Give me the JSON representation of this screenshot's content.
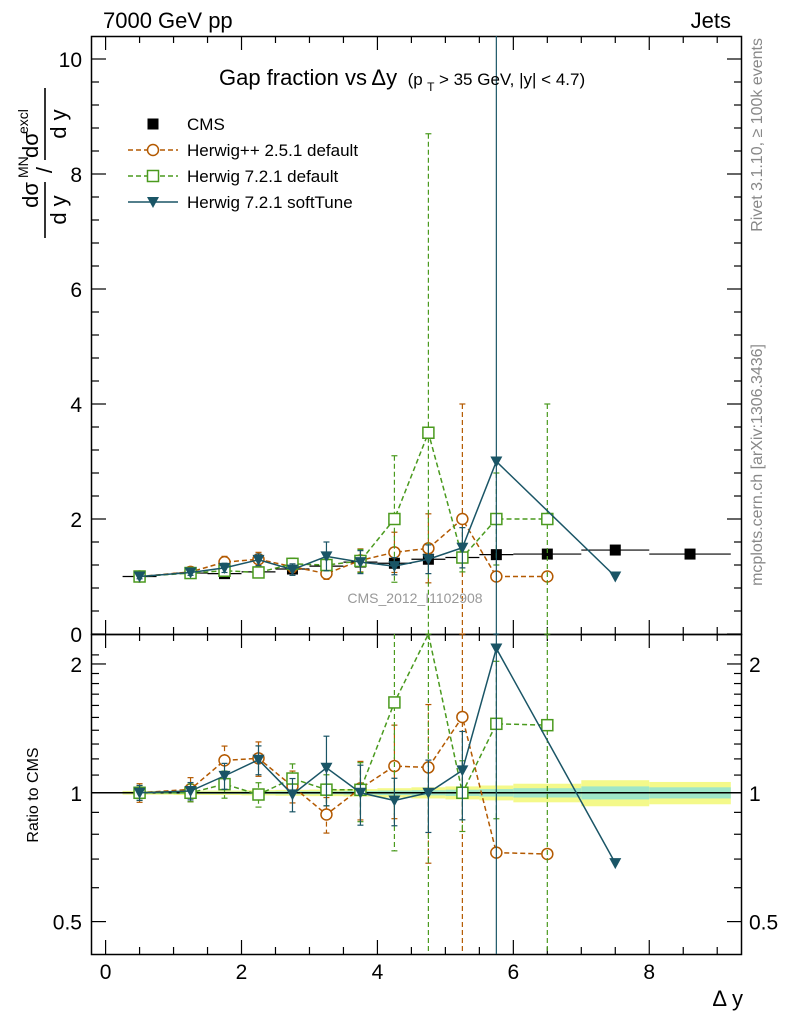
{
  "header": {
    "left": "7000 GeV pp",
    "right": "Jets"
  },
  "side_labels": {
    "rivet": "Rivet 3.1.10, ≥ 100k events",
    "mcplots": "mcplots.cern.ch [arXiv:1306.3436]"
  },
  "chart_data": {
    "type": "scatter",
    "title": "Gap fraction vs Δy (p_T > 35 GeV, |y| < 4.7)",
    "title_parts": {
      "main": "Gap fraction vs",
      "delta": "Δy",
      "paren_open": "(p",
      "sub_t": "T",
      "paren_rest": " > 35 GeV, |y| < 4.7)"
    },
    "ylabel_parts": {
      "num1": "dσ",
      "sup1": "MN",
      "den1": "d y",
      "sep": "/",
      "num2": "dσ",
      "sup2": "excl",
      "den2": "d y"
    },
    "xlabel": "Δ y",
    "ratio_ylabel": "Ratio to CMS",
    "watermark": "CMS_2012_I1102908",
    "main": {
      "ylim": [
        0,
        10.4
      ],
      "yticks": [
        0,
        2,
        4,
        6,
        8,
        10
      ],
      "yticklabels": [
        "0",
        "2",
        "4",
        "6",
        "8",
        "10"
      ]
    },
    "ratio": {
      "ylim": [
        0.42,
        2.35
      ],
      "scale": "log",
      "yticks": [
        0.5,
        1,
        2
      ],
      "yticklabels": [
        "0.5",
        "1",
        "2"
      ]
    },
    "xlim": [
      -0.2,
      9.35
    ],
    "xticks": [
      0,
      2,
      4,
      6,
      8
    ],
    "xticklabels": [
      "0",
      "2",
      "4",
      "6",
      "8"
    ],
    "legend_position": "top-left",
    "series": [
      {
        "name": "CMS",
        "color": "#000000",
        "style": "data",
        "x": [
          0.5,
          1.25,
          1.75,
          2.25,
          2.75,
          3.25,
          3.75,
          4.25,
          4.75,
          5.25,
          5.75,
          6.5,
          7.5,
          8.6
        ],
        "y": [
          1.0,
          1.06,
          1.05,
          1.08,
          1.13,
          1.18,
          1.25,
          1.23,
          1.3,
          1.33,
          1.38,
          1.39,
          1.46,
          1.39
        ],
        "xerr": [
          0.25,
          0.25,
          0.25,
          0.25,
          0.25,
          0.25,
          0.25,
          0.25,
          0.25,
          0.25,
          0.25,
          0.5,
          0.5,
          0.6
        ],
        "yerr": [
          0,
          0,
          0,
          0,
          0,
          0,
          0,
          0,
          0,
          0,
          0,
          0,
          0,
          0
        ]
      },
      {
        "name": "Herwig++ 2.5.1 default",
        "color": "#b35900",
        "style": "open-circle",
        "dash": "5,3",
        "x": [
          0.5,
          1.25,
          1.75,
          2.25,
          2.75,
          3.25,
          3.75,
          4.25,
          4.75,
          5.25,
          5.75,
          6.5
        ],
        "y": [
          1.0,
          1.08,
          1.25,
          1.3,
          1.17,
          1.05,
          1.28,
          1.42,
          1.49,
          2.0,
          1.0,
          1.0
        ],
        "yerr": [
          0.05,
          0.07,
          0.1,
          0.12,
          0.1,
          0.1,
          0.2,
          0.35,
          0.6,
          2.0,
          0.0,
          0.0
        ]
      },
      {
        "name": "Herwig 7.2.1 default",
        "color": "#4a9a1e",
        "style": "open-square",
        "dash": "5,3",
        "x": [
          0.5,
          1.25,
          1.75,
          2.25,
          2.75,
          3.25,
          3.75,
          4.25,
          4.75,
          5.25,
          5.75,
          6.5
        ],
        "y": [
          1.0,
          1.06,
          1.1,
          1.07,
          1.22,
          1.2,
          1.27,
          2.0,
          3.5,
          1.33,
          2.0,
          2.0
        ],
        "yerr": [
          0.04,
          0.05,
          0.08,
          0.07,
          0.1,
          0.1,
          0.2,
          1.1,
          5.2,
          0.25,
          0.8,
          2.0
        ]
      },
      {
        "name": "Herwig 7.2.1 softTune",
        "color": "#1a5566",
        "style": "filled-triangle-down",
        "dash": "",
        "x": [
          0.5,
          1.25,
          1.75,
          2.25,
          2.75,
          3.25,
          3.75,
          4.25,
          4.75,
          5.25,
          5.75,
          7.5
        ],
        "y": [
          1.0,
          1.07,
          1.15,
          1.29,
          1.12,
          1.35,
          1.25,
          1.18,
          1.3,
          1.5,
          3.0,
          1.0
        ],
        "yerr": [
          0.04,
          0.05,
          0.08,
          0.1,
          0.1,
          0.25,
          0.2,
          0.15,
          0.25,
          0.35,
          7.5,
          0.0
        ]
      }
    ],
    "ratio_band": {
      "x_edges": [
        0.25,
        1.0,
        1.5,
        2.0,
        2.5,
        3.0,
        3.5,
        4.0,
        4.5,
        5.0,
        5.5,
        6.0,
        7.0,
        8.0,
        9.2
      ],
      "inner": [
        0.005,
        0.006,
        0.006,
        0.007,
        0.008,
        0.008,
        0.01,
        0.012,
        0.014,
        0.017,
        0.02,
        0.025,
        0.035,
        0.03
      ],
      "outer": [
        0.01,
        0.012,
        0.012,
        0.014,
        0.016,
        0.018,
        0.02,
        0.025,
        0.03,
        0.035,
        0.04,
        0.05,
        0.07,
        0.06
      ]
    }
  }
}
